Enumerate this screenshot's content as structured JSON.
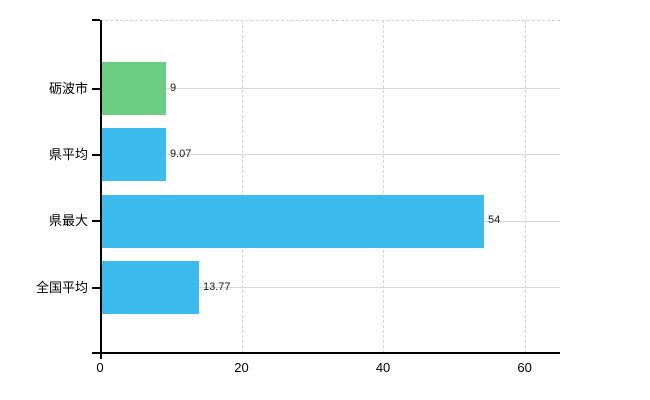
{
  "chart_data": {
    "type": "bar",
    "orientation": "horizontal",
    "title": "",
    "xlabel": "",
    "ylabel": "",
    "categories": [
      "砺波市",
      "県平均",
      "県最大",
      "全国平均"
    ],
    "series": [
      {
        "name": "値",
        "values": [
          9,
          9.07,
          54,
          13.77
        ]
      }
    ],
    "value_labels": [
      "9",
      "9.07",
      "54",
      "13.77"
    ],
    "bar_colors": [
      "#6bce84",
      "#3cbcee",
      "#3cbcee",
      "#3cbcee"
    ],
    "highlighted_category": "砺波市",
    "x_ticks": [
      "0",
      "20",
      "40",
      "60"
    ],
    "x_tick_values": [
      0,
      20,
      40,
      60
    ],
    "xlim": [
      0,
      65
    ],
    "grid": "on",
    "gridline_style": {
      "horizontal": "solid",
      "vertical": "dashed"
    },
    "legend_position": "none"
  },
  "colors": {
    "highlight_green": "#6bce84",
    "bar_blue": "#3cbcee",
    "axis_black": "#000000",
    "grid_horizontal": "#d5dad1",
    "grid_vertical": "#dbd3d8",
    "background": "#ffffff"
  }
}
